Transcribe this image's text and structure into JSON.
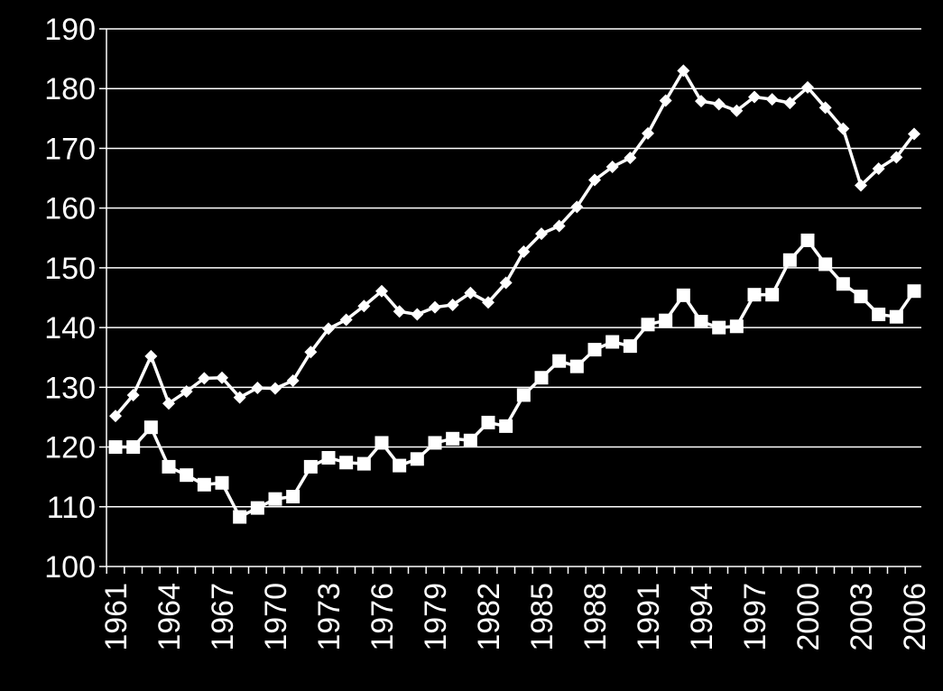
{
  "chart_data": {
    "type": "line",
    "title": "",
    "xlabel": "",
    "ylabel": "",
    "ylim": [
      100,
      190
    ],
    "yticks": [
      100,
      110,
      120,
      130,
      140,
      150,
      160,
      170,
      180,
      190
    ],
    "x": [
      1961,
      1962,
      1963,
      1964,
      1965,
      1966,
      1967,
      1968,
      1969,
      1970,
      1971,
      1972,
      1973,
      1974,
      1975,
      1976,
      1977,
      1978,
      1979,
      1980,
      1981,
      1982,
      1983,
      1984,
      1985,
      1986,
      1987,
      1988,
      1989,
      1990,
      1991,
      1992,
      1993,
      1994,
      1995,
      1996,
      1997,
      1998,
      1999,
      2000,
      2001,
      2002,
      2003,
      2004,
      2005,
      2006
    ],
    "xtick_labels": [
      "1961",
      "1964",
      "1967",
      "1970",
      "1973",
      "1976",
      "1979",
      "1982",
      "1985",
      "1988",
      "1991",
      "1994",
      "1997",
      "2000",
      "2003",
      "2006"
    ],
    "grid": true,
    "legend": "none",
    "colors": {
      "background": "#000000",
      "foreground": "#ffffff"
    },
    "series": [
      {
        "marker": "diamond",
        "values": [
          125.2,
          128.7,
          135.2,
          127.3,
          129.3,
          131.5,
          131.6,
          128.3,
          129.9,
          129.8,
          131.1,
          135.9,
          139.8,
          141.3,
          143.6,
          146.1,
          142.7,
          142.2,
          143.4,
          143.8,
          145.8,
          144.2,
          147.5,
          152.7,
          155.7,
          157.0,
          160.2,
          164.7,
          166.9,
          168.4,
          172.5,
          178.0,
          183.0,
          177.9,
          177.4,
          176.3,
          178.6,
          178.2,
          177.6,
          180.2,
          176.8,
          173.3,
          163.8,
          166.6,
          168.5,
          172.4
        ]
      },
      {
        "marker": "square",
        "values": [
          120.0,
          120.0,
          123.3,
          116.7,
          115.3,
          113.7,
          114.0,
          108.3,
          109.8,
          111.3,
          111.7,
          116.7,
          118.2,
          117.4,
          117.2,
          120.7,
          116.9,
          118.0,
          120.7,
          121.4,
          121.1,
          124.1,
          123.5,
          128.7,
          131.6,
          134.4,
          133.5,
          136.3,
          137.6,
          136.9,
          140.5,
          141.2,
          145.4,
          141.0,
          140.0,
          140.2,
          145.5,
          145.5,
          151.3,
          154.6,
          150.6,
          147.3,
          145.2,
          142.2,
          141.8,
          146.1
        ]
      }
    ]
  }
}
